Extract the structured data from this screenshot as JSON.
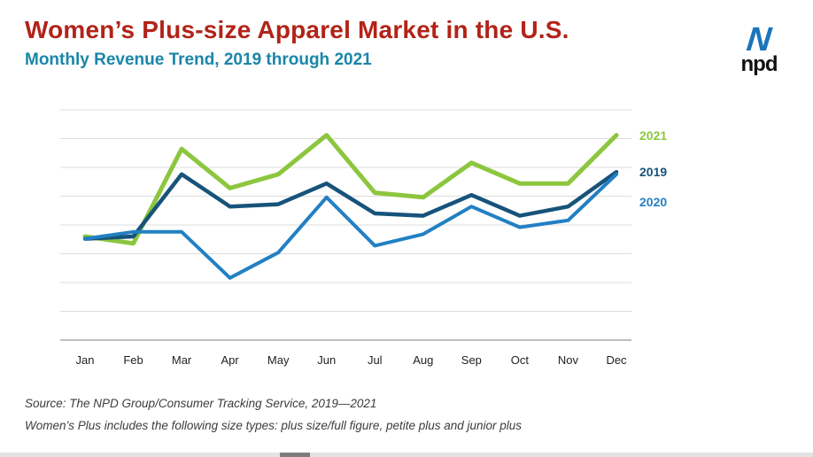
{
  "header": {
    "title": "Women’s Plus-size Apparel Market in the U.S.",
    "subtitle": "Monthly Revenue Trend, 2019 through 2021",
    "title_color": "#b22318",
    "subtitle_color": "#1a86a8"
  },
  "logo": {
    "icon": "npd-stylized-n",
    "text": "npd",
    "color": "#1b75bb"
  },
  "chart_data": {
    "type": "line",
    "title": "Women’s Plus-size Apparel Market in the U.S.",
    "subtitle": "Monthly Revenue Trend, 2019 through 2021",
    "categories": [
      "Jan",
      "Feb",
      "Mar",
      "Apr",
      "May",
      "Jun",
      "Jul",
      "Aug",
      "Sep",
      "Oct",
      "Nov",
      "Dec"
    ],
    "series": [
      {
        "name": "2021",
        "color": "#8cc63e",
        "values": [
          45,
          42,
          83,
          66,
          72,
          89,
          64,
          62,
          77,
          68,
          68,
          89
        ]
      },
      {
        "name": "2019",
        "color": "#17537b",
        "values": [
          44,
          45,
          72,
          58,
          59,
          68,
          55,
          54,
          63,
          54,
          58,
          73
        ]
      },
      {
        "name": "2020",
        "color": "#2280c3",
        "values": [
          44,
          47,
          47,
          27,
          38,
          62,
          41,
          46,
          58,
          49,
          52,
          72
        ]
      }
    ],
    "xlabel": "",
    "ylabel": "",
    "ylim": [
      0,
      100
    ],
    "y_axis_visible": false,
    "grid": "horizontal",
    "gridline_count": 9,
    "legend_position": "right-of-lines",
    "note": "y values are relative estimates; chart has no visible y-axis scale"
  },
  "footer": {
    "source_line": "Source: The NPD Group/Consumer Tracking Service, 2019—2021",
    "note_line": "Women’s Plus includes the following size types: plus size/full figure, petite plus and junior plus"
  }
}
